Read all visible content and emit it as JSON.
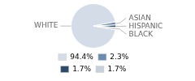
{
  "chart_data": {
    "type": "pie",
    "categories": [
      "WHITE",
      "ASIAN",
      "HISPANIC",
      "BLACK"
    ],
    "values": [
      94.4,
      2.3,
      1.7,
      1.7
    ],
    "value_labels": [
      "94.4%",
      "2.3%",
      "1.7%",
      "1.7%"
    ],
    "colors": [
      "#d4dce8",
      "#6b8cae",
      "#2d4a6b",
      "#c8d0dc"
    ],
    "legend": "bottom"
  }
}
